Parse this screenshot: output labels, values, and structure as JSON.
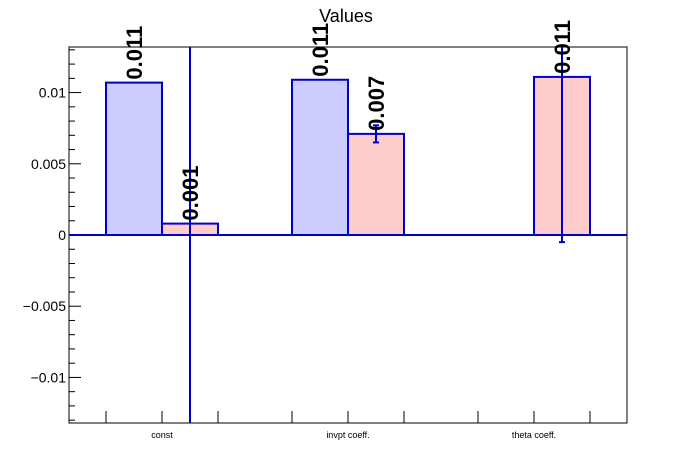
{
  "chart_data": {
    "type": "bar",
    "title": "Values",
    "xlabel": "",
    "ylabel": "",
    "categories": [
      "const",
      "invpt coeff.",
      "theta coeff."
    ],
    "ylim": [
      -0.0132,
      0.0132
    ],
    "yticks": [
      -0.01,
      -0.005,
      0,
      0.005,
      0.01
    ],
    "ytick_labels": [
      "−0.01",
      "−0.005",
      "0",
      "0.005",
      "0.01"
    ],
    "grid": false,
    "legend": "none",
    "series": [
      {
        "color": "#ccccff",
        "values": [
          0.0107,
          0.0109,
          null
        ],
        "errors": [
          null,
          null,
          null
        ],
        "labels": [
          "0.011",
          "0.011",
          null
        ]
      },
      {
        "color": "#ffcccc",
        "values": [
          0.0008,
          0.0071,
          0.0111
        ],
        "errors": [
          0.033,
          0.0006,
          0.0116
        ],
        "labels": [
          "0.001",
          "0.007",
          "0.011"
        ]
      }
    ],
    "colors": {
      "edge": "#0000cc",
      "axis": "#000000"
    }
  }
}
